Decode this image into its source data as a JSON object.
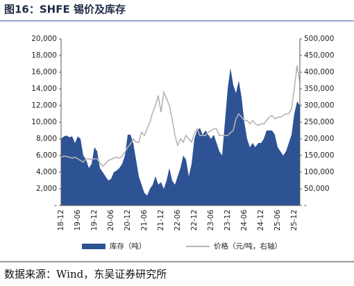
{
  "chart_data": {
    "type": "area-line",
    "title": "图16：SHFE 锡价及库存",
    "source": "数据来源：Wind，东吴证券研究所",
    "categories": [
      "18-12",
      null,
      null,
      null,
      null,
      null,
      "19-06",
      null,
      null,
      null,
      null,
      null,
      "19-12",
      null,
      null,
      null,
      null,
      null,
      "20-06",
      null,
      null,
      null,
      null,
      null,
      "20-12",
      null,
      null,
      null,
      null,
      null,
      "21-06",
      null,
      null,
      null,
      null,
      null,
      "21-12",
      null,
      null,
      null,
      null,
      null,
      "22-06",
      null,
      null,
      null,
      null,
      null,
      "22-12",
      null,
      null,
      null,
      null,
      null,
      "23-06",
      null,
      null,
      null,
      null,
      null,
      "23-12",
      null,
      null,
      null,
      null,
      null,
      "24-06",
      null,
      null,
      null,
      null,
      null,
      "24-12",
      null,
      null,
      null,
      null,
      null,
      "25-06",
      null,
      null,
      null,
      null,
      null,
      "25-12",
      null,
      null
    ],
    "series": [
      {
        "name": "库存（吨）",
        "type": "area",
        "color": "#2e5395",
        "values": [
          8000,
          8300,
          8400,
          8200,
          8300,
          7500,
          8300,
          8000,
          6000,
          5500,
          4500,
          5000,
          7000,
          6500,
          4500,
          4000,
          3500,
          3000,
          3200,
          4000,
          4200,
          4500,
          5000,
          6000,
          8500,
          8500,
          7500,
          5500,
          3500,
          2500,
          1500,
          1200,
          2000,
          2500,
          3500,
          2500,
          2800,
          2000,
          3000,
          4500,
          3000,
          2500,
          3500,
          4500,
          6000,
          5500,
          3500,
          5000,
          8000,
          9000,
          9300,
          8500,
          9000,
          8500,
          8000,
          8500,
          7500,
          6500,
          6000,
          10000,
          14000,
          16500,
          14500,
          13500,
          15000,
          13000,
          10000,
          8000,
          7000,
          7500,
          7000,
          7500,
          7500,
          8000,
          9000,
          9000,
          9000,
          8500,
          7000,
          6500,
          6000,
          6500,
          7500,
          8500,
          11000,
          12500,
          12000
        ]
      },
      {
        "name": "价格（元/吨，右轴）",
        "type": "line",
        "axis": "y2",
        "color": "#b4b4b4",
        "values": [
          145000,
          148000,
          147000,
          145000,
          142000,
          145000,
          140000,
          135000,
          130000,
          140000,
          140000,
          138000,
          140000,
          140000,
          128000,
          118000,
          125000,
          135000,
          138000,
          142000,
          145000,
          142000,
          148000,
          160000,
          175000,
          185000,
          200000,
          190000,
          190000,
          220000,
          210000,
          230000,
          250000,
          280000,
          300000,
          330000,
          280000,
          340000,
          320000,
          300000,
          260000,
          210000,
          180000,
          200000,
          190000,
          210000,
          200000,
          190000,
          215000,
          230000,
          210000,
          210000,
          210000,
          220000,
          225000,
          230000,
          230000,
          210000,
          210000,
          210000,
          210000,
          218000,
          225000,
          260000,
          275000,
          265000,
          255000,
          255000,
          245000,
          255000,
          245000,
          240000,
          245000,
          245000,
          255000,
          265000,
          270000,
          260000,
          265000,
          265000,
          270000,
          275000,
          275000,
          290000,
          350000,
          420000,
          370000
        ]
      }
    ],
    "ylim": [
      0,
      20000
    ],
    "yticks": [
      {
        "value": 0,
        "label": "-"
      },
      {
        "value": 2000,
        "label": "2,000"
      },
      {
        "value": 4000,
        "label": "4,000"
      },
      {
        "value": 6000,
        "label": "6,000"
      },
      {
        "value": 8000,
        "label": "8,000"
      },
      {
        "value": 10000,
        "label": "10,000"
      },
      {
        "value": 12000,
        "label": "12,000"
      },
      {
        "value": 14000,
        "label": "14,000"
      },
      {
        "value": 16000,
        "label": "16,000"
      },
      {
        "value": 18000,
        "label": "18,000"
      },
      {
        "value": 20000,
        "label": "20,000"
      }
    ],
    "y2lim": [
      0,
      500000
    ],
    "y2ticks": [
      {
        "value": 0,
        "label": "-"
      },
      {
        "value": 50000,
        "label": "50,000"
      },
      {
        "value": 100000,
        "label": "100,000"
      },
      {
        "value": 150000,
        "label": "150,000"
      },
      {
        "value": 200000,
        "label": "200,000"
      },
      {
        "value": 250000,
        "label": "250,000"
      },
      {
        "value": 300000,
        "label": "300,000"
      },
      {
        "value": 350000,
        "label": "350,000"
      },
      {
        "value": 400000,
        "label": "400,000"
      },
      {
        "value": 450000,
        "label": "450,000"
      },
      {
        "value": 500000,
        "label": "500,000"
      }
    ],
    "legend": "bottom",
    "grid": false
  }
}
